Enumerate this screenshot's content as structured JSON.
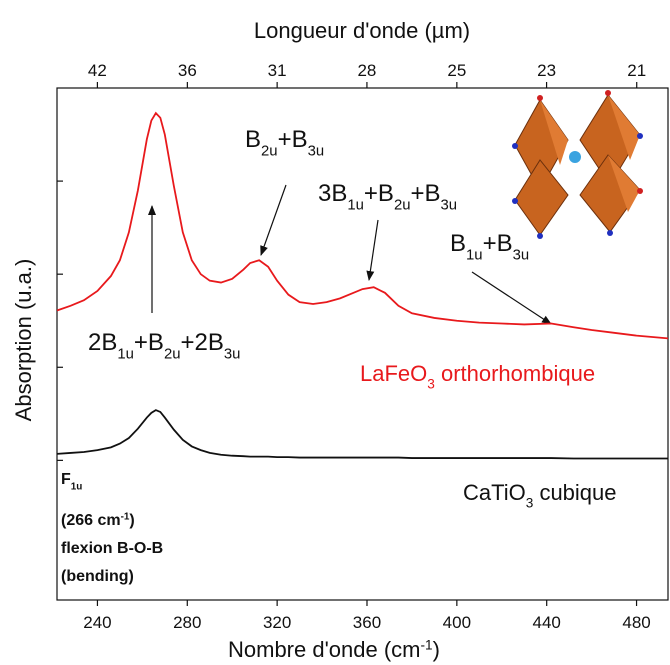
{
  "chart_data": {
    "type": "line",
    "x2label": "Longueur d'onde (µm)",
    "xlabel": [
      "Nombre d'onde (cm",
      "-1",
      ")"
    ],
    "ylabel": "Absorption (u.a.)",
    "xlim": [
      222,
      494
    ],
    "xticks": [
      240,
      280,
      320,
      360,
      400,
      440,
      480
    ],
    "x2ticks": [
      {
        "value": 41.67,
        "label": "42"
      },
      {
        "value": 35.71,
        "label": "36"
      },
      {
        "value": 31.25,
        "label": "31"
      },
      {
        "value": 27.78,
        "label": "28"
      },
      25,
      {
        "value": 22.73,
        "label": "23"
      },
      {
        "value": 20.83,
        "label": "21"
      }
    ],
    "ylim": [
      -1.5,
      4
    ],
    "yticks": [
      0,
      1,
      2,
      3
    ],
    "x": [
      222,
      228,
      234,
      240,
      246,
      250,
      254,
      258,
      262,
      264,
      266,
      268,
      270,
      274,
      278,
      282,
      286,
      290,
      295,
      300,
      305,
      308,
      312,
      316,
      320,
      325,
      330,
      336,
      342,
      348,
      354,
      358,
      363,
      368,
      374,
      380,
      390,
      400,
      410,
      420,
      430,
      442,
      452,
      460,
      470,
      480,
      494
    ],
    "series": [
      {
        "name": [
          "LaFeO",
          "3",
          " orthorhombique"
        ],
        "color": "#e8191c",
        "values": [
          1.61,
          1.66,
          1.72,
          1.82,
          1.98,
          2.15,
          2.45,
          2.9,
          3.45,
          3.65,
          3.73,
          3.68,
          3.5,
          2.95,
          2.45,
          2.15,
          2.0,
          1.93,
          1.91,
          1.95,
          2.05,
          2.12,
          2.15,
          2.08,
          1.93,
          1.78,
          1.7,
          1.68,
          1.7,
          1.74,
          1.8,
          1.84,
          1.86,
          1.8,
          1.66,
          1.58,
          1.53,
          1.5,
          1.48,
          1.47,
          1.46,
          1.47,
          1.43,
          1.4,
          1.37,
          1.34,
          1.31
        ]
      },
      {
        "name": [
          "CaTiO",
          "3",
          " cubique"
        ],
        "color": "#111111",
        "values": [
          0.07,
          0.08,
          0.09,
          0.11,
          0.14,
          0.18,
          0.24,
          0.34,
          0.46,
          0.51,
          0.54,
          0.52,
          0.46,
          0.33,
          0.22,
          0.15,
          0.11,
          0.08,
          0.06,
          0.05,
          0.045,
          0.04,
          0.04,
          0.04,
          0.035,
          0.035,
          0.03,
          0.03,
          0.03,
          0.03,
          0.03,
          0.03,
          0.03,
          0.03,
          0.03,
          0.025,
          0.025,
          0.025,
          0.025,
          0.025,
          0.025,
          0.025,
          0.02,
          0.02,
          0.02,
          0.02,
          0.02
        ]
      }
    ],
    "annotations": [
      [
        "2B",
        "1u",
        "+B",
        "2u",
        "+2B",
        "3u"
      ],
      [
        "B",
        "2u",
        "+B",
        "3u"
      ],
      [
        "3B",
        "1u",
        "+B",
        "2u",
        "+B",
        "3u"
      ],
      [
        "B",
        "1u",
        "+B",
        "3u"
      ]
    ],
    "peak_note": [
      [
        "F",
        "1u"
      ],
      [
        "(266 cm",
        "-1",
        ")"
      ],
      [
        "flexion B-O-B"
      ],
      [
        "(bending)"
      ]
    ]
  }
}
